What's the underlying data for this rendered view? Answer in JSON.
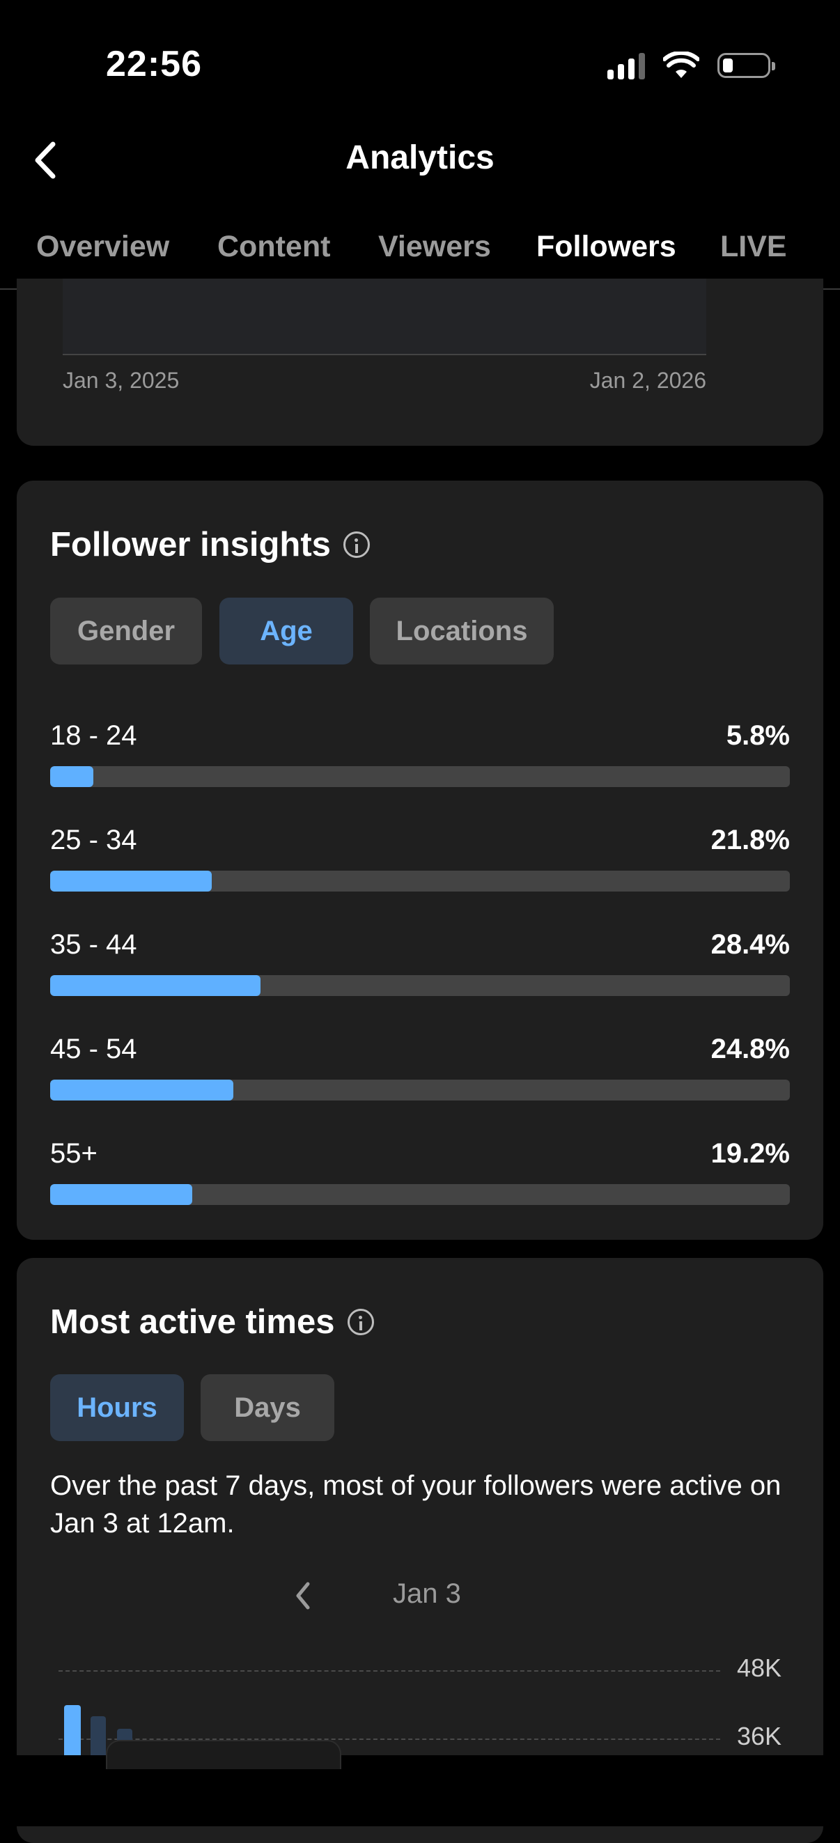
{
  "status_bar": {
    "time": "22:56",
    "icons": [
      "cellular-signal-icon",
      "wifi-icon",
      "battery-icon"
    ]
  },
  "header": {
    "title": "Analytics",
    "back_icon": "chevron-left-icon"
  },
  "tabs": [
    {
      "label": "Overview",
      "active": false
    },
    {
      "label": "Content",
      "active": false
    },
    {
      "label": "Viewers",
      "active": false
    },
    {
      "label": "Followers",
      "active": true
    },
    {
      "label": "LIVE",
      "active": false
    }
  ],
  "followers_chart": {
    "start_date": "Jan 3, 2025",
    "end_date": "Jan 2, 2026"
  },
  "follower_insights": {
    "title": "Follower insights",
    "filters": [
      {
        "label": "Gender",
        "active": false
      },
      {
        "label": "Age",
        "active": true
      },
      {
        "label": "Locations",
        "active": false
      }
    ],
    "age_groups": [
      {
        "label": "18 - 24",
        "percent_text": "5.8%",
        "value": 5.8
      },
      {
        "label": "25 - 34",
        "percent_text": "21.8%",
        "value": 21.8
      },
      {
        "label": "35 - 44",
        "percent_text": "28.4%",
        "value": 28.4
      },
      {
        "label": "45 - 54",
        "percent_text": "24.8%",
        "value": 24.8
      },
      {
        "label": "55+",
        "percent_text": "19.2%",
        "value": 19.2
      }
    ]
  },
  "most_active_times": {
    "title": "Most active times",
    "filters": [
      {
        "label": "Hours",
        "active": true
      },
      {
        "label": "Days",
        "active": false
      }
    ],
    "description": "Over the past 7 days, most of your followers were active on Jan 3 at 12am.",
    "selected_date": "Jan 3",
    "y_ticks": [
      "48K",
      "36K"
    ]
  },
  "colors": {
    "accent": "#5fb0ff",
    "card": "#1f1f1f",
    "track": "#444444"
  }
}
